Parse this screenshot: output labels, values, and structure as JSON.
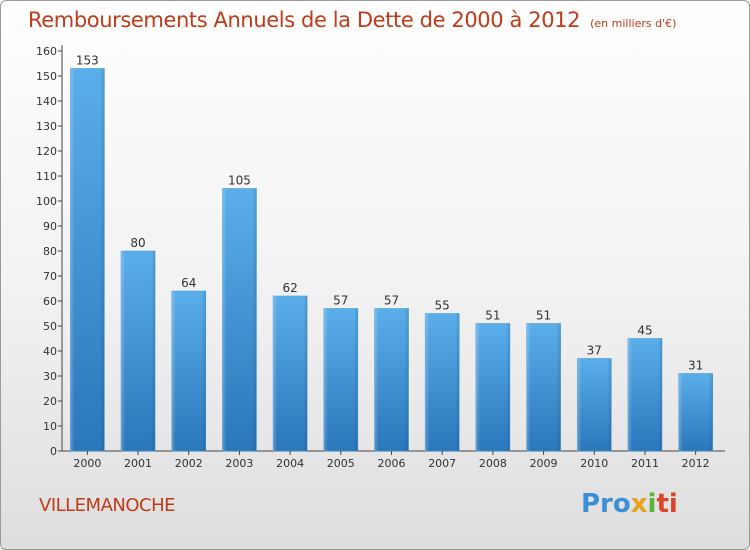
{
  "title": "Remboursements Annuels de la Dette de 2000 à 2012",
  "unit_note": "(en milliers d'€)",
  "commune": "VILLEMANOCHE",
  "logo": {
    "p1": "Pro",
    "p2": "x",
    "p3": "i",
    "p4": "ti"
  },
  "colors": {
    "bar_top": "#5aaeea",
    "bar_bottom": "#2a77bb",
    "title": "#c23a17"
  },
  "chart_data": {
    "type": "bar",
    "categories": [
      "2000",
      "2001",
      "2002",
      "2003",
      "2004",
      "2005",
      "2006",
      "2007",
      "2008",
      "2009",
      "2010",
      "2011",
      "2012"
    ],
    "values": [
      153,
      80,
      64,
      105,
      62,
      57,
      57,
      55,
      51,
      51,
      37,
      45,
      31
    ],
    "ylim": [
      0,
      160
    ],
    "yticks": [
      0,
      10,
      20,
      30,
      40,
      50,
      60,
      70,
      80,
      90,
      100,
      110,
      120,
      130,
      140,
      150,
      160
    ],
    "grid": false
  }
}
